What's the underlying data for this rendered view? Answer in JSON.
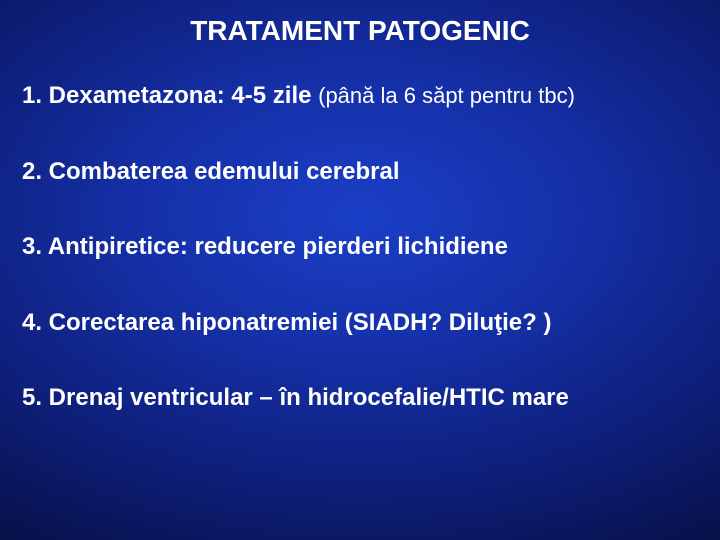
{
  "slide": {
    "title": "TRATAMENT PATOGENIC",
    "background": {
      "type": "radial-gradient",
      "center_color": "#1a3fc7",
      "edge_color": "#030520"
    },
    "title_fontsize": 28,
    "title_color": "#ffffff",
    "item_fontsize_bold": 24,
    "item_fontsize_normal": 22,
    "text_color": "#ffffff",
    "items": [
      {
        "bold": "1. Dexametazona: 4-5 zile ",
        "normal": "(până la 6 săpt pentru tbc)"
      },
      {
        "bold": "2. Combaterea edemului cerebral",
        "normal": ""
      },
      {
        "bold": "3. Antipiretice: reducere pierderi lichidiene",
        "normal": ""
      },
      {
        "bold": "4. Corectarea hiponatremiei (SIADH? Diluţie? )",
        "normal": ""
      },
      {
        "bold": "5. Drenaj ventricular – în hidrocefalie/HTIC mare",
        "normal": ""
      }
    ]
  }
}
